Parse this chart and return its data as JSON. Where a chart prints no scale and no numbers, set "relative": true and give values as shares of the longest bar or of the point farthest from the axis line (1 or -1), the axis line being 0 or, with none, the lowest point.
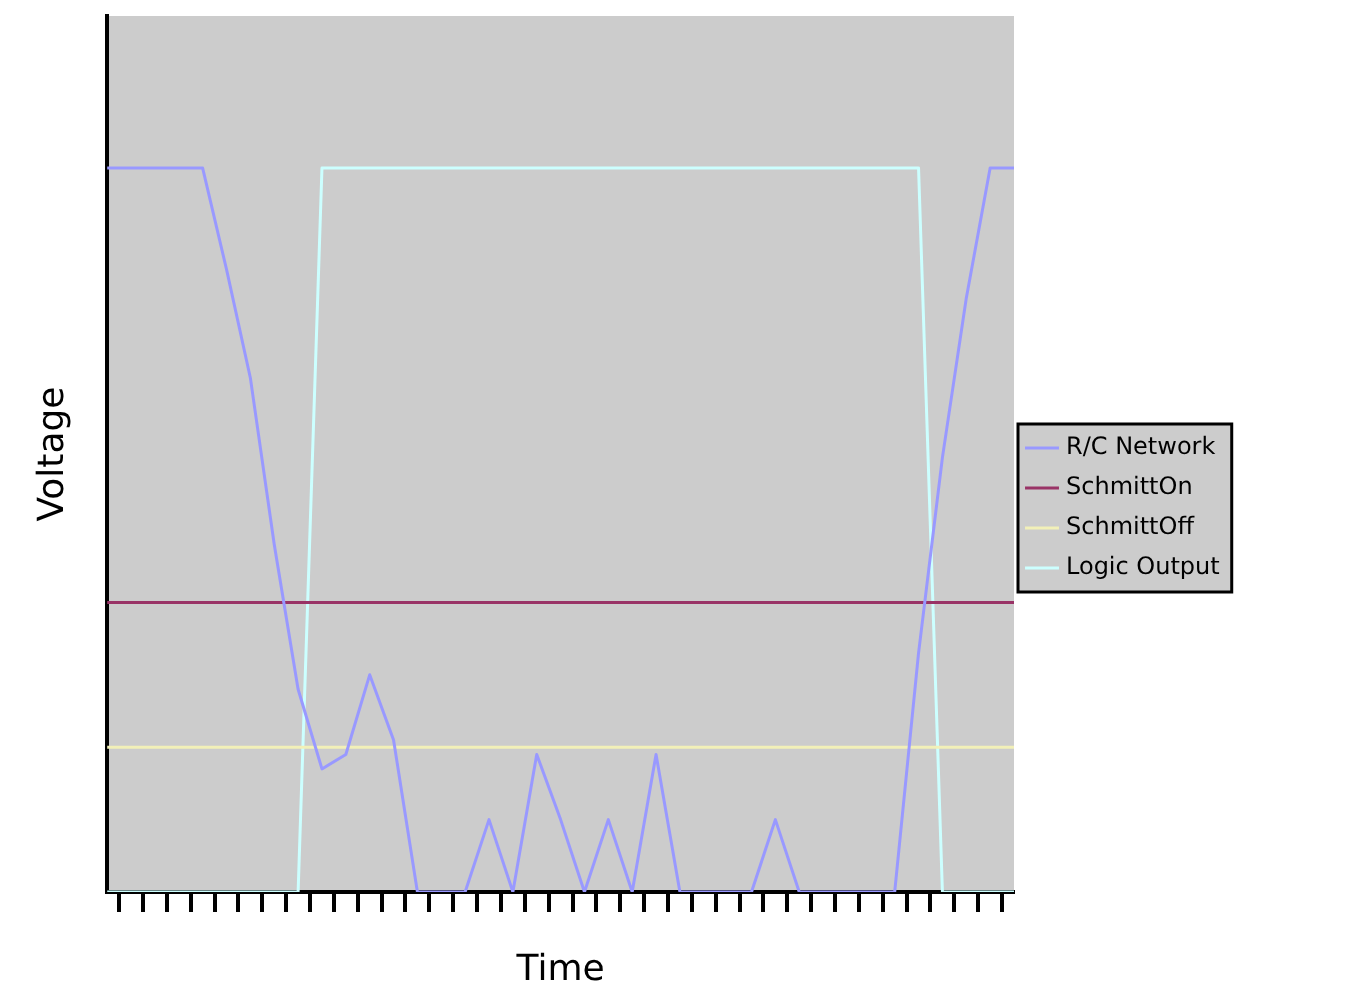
{
  "chart_data": {
    "type": "line",
    "relative": true,
    "xlabel": "Time",
    "ylabel": "Voltage",
    "legend": "right",
    "grid": false,
    "marker": "none",
    "categories": [
      null,
      null,
      null,
      null,
      null,
      null,
      null,
      null,
      null,
      null,
      null,
      null,
      null,
      null,
      null,
      null,
      null,
      null,
      null,
      null,
      null,
      null,
      null,
      null,
      null,
      null,
      null,
      null,
      null,
      null,
      null,
      null,
      null,
      null,
      null,
      null,
      null,
      null,
      null
    ],
    "series": [
      {
        "name": "R/C Network",
        "color": "#9999ff",
        "values": [
          1,
          1,
          1,
          1,
          1,
          0.86,
          0.71,
          0.48,
          0.28,
          0.17,
          0.19,
          0.3,
          0.21,
          0,
          0,
          0,
          0.1,
          0,
          0.19,
          0.1,
          0,
          0.1,
          0,
          0.19,
          0,
          0,
          0,
          0,
          0.1,
          0,
          0,
          0,
          0,
          0,
          0.33,
          0.6,
          0.82,
          1,
          1
        ]
      },
      {
        "name": "SchmittOn",
        "color": "#993366",
        "values": [
          0.4,
          0.4,
          0.4,
          0.4,
          0.4,
          0.4,
          0.4,
          0.4,
          0.4,
          0.4,
          0.4,
          0.4,
          0.4,
          0.4,
          0.4,
          0.4,
          0.4,
          0.4,
          0.4,
          0.4,
          0.4,
          0.4,
          0.4,
          0.4,
          0.4,
          0.4,
          0.4,
          0.4,
          0.4,
          0.4,
          0.4,
          0.4,
          0.4,
          0.4,
          0.4,
          0.4,
          0.4,
          0.4,
          0.4
        ]
      },
      {
        "name": "SchmittOff",
        "color": "#f2f0b8",
        "values": [
          0.2,
          0.2,
          0.2,
          0.2,
          0.2,
          0.2,
          0.2,
          0.2,
          0.2,
          0.2,
          0.2,
          0.2,
          0.2,
          0.2,
          0.2,
          0.2,
          0.2,
          0.2,
          0.2,
          0.2,
          0.2,
          0.2,
          0.2,
          0.2,
          0.2,
          0.2,
          0.2,
          0.2,
          0.2,
          0.2,
          0.2,
          0.2,
          0.2,
          0.2,
          0.2,
          0.2,
          0.2,
          0.2,
          0.2
        ]
      },
      {
        "name": "Logic Output",
        "color": "#ccffff",
        "values": [
          0,
          0,
          0,
          0,
          0,
          0,
          0,
          0,
          0,
          1,
          1,
          1,
          1,
          1,
          1,
          1,
          1,
          1,
          1,
          1,
          1,
          1,
          1,
          1,
          1,
          1,
          1,
          1,
          1,
          1,
          1,
          1,
          1,
          1,
          1,
          0,
          0,
          0,
          0
        ]
      }
    ]
  }
}
